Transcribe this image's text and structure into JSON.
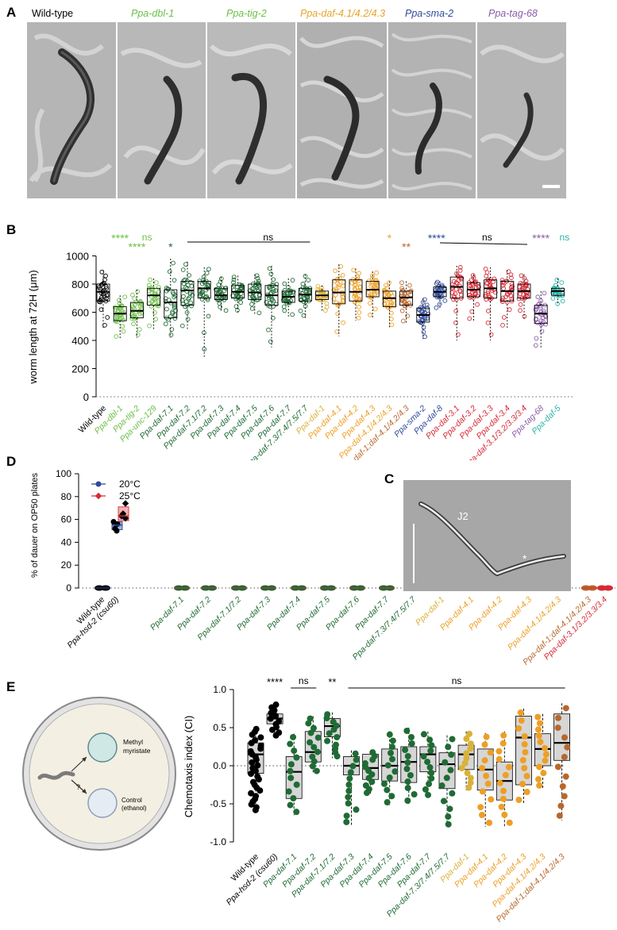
{
  "panel_labels": {
    "a": "A",
    "b": "B",
    "c": "C",
    "d": "D",
    "e": "E"
  },
  "panel_a": {
    "titles": [
      {
        "text": "Wild-type",
        "color": "#000000"
      },
      {
        "text": "Ppa-dbl-1",
        "color": "#6cbf45"
      },
      {
        "text": "Ppa-tig-2",
        "color": "#6cbf45"
      },
      {
        "text": "Ppa-daf-4.1/4.2/4.3",
        "color": "#e6a52a"
      },
      {
        "text": "Ppa-sma-2",
        "color": "#2e4a9a"
      },
      {
        "text": "Ppa-tag-68",
        "color": "#8c5ca8"
      }
    ]
  },
  "panel_c": {
    "label_j2": "J2",
    "star": "*"
  },
  "panel_e_schematic": {
    "label_top": "Methyl myristate",
    "label_top_l1": "Methyl",
    "label_top_l2": "myristate",
    "label_bottom_l1": "Control",
    "label_bottom_l2": "(ethanol)",
    "question": "?"
  },
  "colors": {
    "black": "#000000",
    "light_green": "#6cbf45",
    "dark_green": "#1f6b34",
    "yellow_gold": "#d9b23a",
    "orange": "#ed9f25",
    "brown": "#b8672c",
    "blue": "#2e4a9a",
    "red": "#d62a34",
    "purple": "#8c5ca8",
    "teal": "#2ab3a7",
    "box_gray": "#d6d6d6"
  },
  "chart_data": [
    {
      "type": "box",
      "panel": "B",
      "ylabel": "worm length at 72H (μm)",
      "ylim": [
        0,
        1000
      ],
      "yticks": [
        0,
        200,
        400,
        600,
        800,
        1000
      ],
      "categories": [
        {
          "label": "Wild-type",
          "color": "#000000",
          "q1": 680,
          "median": 745,
          "q3": 800,
          "min": 480,
          "max": 900
        },
        {
          "label": "Ppa-dbl-1",
          "color": "#6cbf45",
          "q1": 540,
          "median": 590,
          "q3": 640,
          "min": 410,
          "max": 720
        },
        {
          "label": "Ppa-tig-2",
          "color": "#6cbf45",
          "q1": 560,
          "median": 610,
          "q3": 670,
          "min": 420,
          "max": 760
        },
        {
          "label": "Ppa-unc-129",
          "color": "#6cbf45",
          "q1": 650,
          "median": 720,
          "q3": 770,
          "min": 480,
          "max": 840
        },
        {
          "label": "Ppa-daf-7.1",
          "color": "#1f6b34",
          "q1": 560,
          "median": 670,
          "q3": 760,
          "min": 420,
          "max": 980
        },
        {
          "label": "Ppa-daf-7.2",
          "color": "#1f6b34",
          "q1": 650,
          "median": 755,
          "q3": 820,
          "min": 480,
          "max": 960
        },
        {
          "label": "Ppa-daf-7.1/7.2",
          "color": "#1f6b34",
          "q1": 700,
          "median": 770,
          "q3": 820,
          "min": 280,
          "max": 920
        },
        {
          "label": "Ppa-daf-7.3",
          "color": "#1f6b34",
          "q1": 690,
          "median": 720,
          "q3": 770,
          "min": 600,
          "max": 850
        },
        {
          "label": "Ppa-daf-7.4",
          "color": "#1f6b34",
          "q1": 700,
          "median": 745,
          "q3": 790,
          "min": 600,
          "max": 860
        },
        {
          "label": "Ppa-daf-7.5",
          "color": "#1f6b34",
          "q1": 690,
          "median": 740,
          "q3": 800,
          "min": 580,
          "max": 870
        },
        {
          "label": "Ppa-daf-7.6",
          "color": "#1f6b34",
          "q1": 650,
          "median": 720,
          "q3": 790,
          "min": 350,
          "max": 930
        },
        {
          "label": "Ppa-daf-7.7",
          "color": "#1f6b34",
          "q1": 670,
          "median": 710,
          "q3": 750,
          "min": 570,
          "max": 840
        },
        {
          "label": "Ppa-daf-7.3/7.4/7.5/7.7",
          "color": "#1f6b34",
          "q1": 680,
          "median": 725,
          "q3": 770,
          "min": 560,
          "max": 870
        },
        {
          "label": "Ppa-daf-1",
          "color": "#d9b23a",
          "q1": 690,
          "median": 720,
          "q3": 750,
          "min": 600,
          "max": 790
        },
        {
          "label": "Ppa-daf-4.1",
          "color": "#ed9f25",
          "q1": 660,
          "median": 740,
          "q3": 830,
          "min": 430,
          "max": 940
        },
        {
          "label": "Ppa-daf-4.2",
          "color": "#ed9f25",
          "q1": 680,
          "median": 745,
          "q3": 830,
          "min": 540,
          "max": 910
        },
        {
          "label": "Ppa-daf-4.3",
          "color": "#ed9f25",
          "q1": 710,
          "median": 760,
          "q3": 820,
          "min": 560,
          "max": 890
        },
        {
          "label": "Ppa-daf-4.1/4.2/4.3",
          "color": "#ed9f25",
          "q1": 640,
          "median": 700,
          "q3": 750,
          "min": 490,
          "max": 820
        },
        {
          "label": "Ppa-daf-1;daf-4.1/4.2/4.3",
          "color": "#b8672c",
          "q1": 650,
          "median": 705,
          "q3": 750,
          "min": 520,
          "max": 820
        },
        {
          "label": "Ppa-sma-2",
          "color": "#2e4a9a",
          "q1": 530,
          "median": 580,
          "q3": 630,
          "min": 410,
          "max": 700
        },
        {
          "label": "Ppa-daf-8",
          "color": "#2e4a9a",
          "q1": 710,
          "median": 745,
          "q3": 780,
          "min": 620,
          "max": 820
        },
        {
          "label": "Ppa-daf-3.1",
          "color": "#d62a34",
          "q1": 700,
          "median": 780,
          "q3": 850,
          "min": 400,
          "max": 930
        },
        {
          "label": "Ppa-daf-3.2",
          "color": "#d62a34",
          "q1": 710,
          "median": 760,
          "q3": 810,
          "min": 530,
          "max": 870
        },
        {
          "label": "Ppa-daf-3.3",
          "color": "#d62a34",
          "q1": 700,
          "median": 770,
          "q3": 830,
          "min": 400,
          "max": 920
        },
        {
          "label": "Ppa-daf-3.4",
          "color": "#d62a34",
          "q1": 680,
          "median": 750,
          "q3": 820,
          "min": 480,
          "max": 900
        },
        {
          "label": "Ppa-daf-3.1/3.2/3.3/3.4",
          "color": "#d62a34",
          "q1": 700,
          "median": 750,
          "q3": 800,
          "min": 550,
          "max": 870
        },
        {
          "label": "Ppa-tag-68",
          "color": "#8c5ca8",
          "q1": 520,
          "median": 590,
          "q3": 650,
          "min": 340,
          "max": 750
        },
        {
          "label": "Ppa-daf-5",
          "color": "#2ab3a7",
          "q1": 720,
          "median": 750,
          "q3": 770,
          "min": 650,
          "max": 840
        }
      ],
      "annotations": [
        {
          "text": "****",
          "color": "#6cbf45",
          "at": 1,
          "row": 0
        },
        {
          "text": "ns",
          "color": "#6cbf45",
          "at": 2.6,
          "row": 0
        },
        {
          "text": "****",
          "color": "#6cbf45",
          "at": 2,
          "row": 1
        },
        {
          "text": "*",
          "color": "#1f6b34",
          "at": 4,
          "row": 1
        },
        {
          "text": "ns",
          "color": "#000000",
          "at": 9.8,
          "row": 0
        },
        {
          "text": "*",
          "color": "#e6a52a",
          "at": 17,
          "row": 0
        },
        {
          "text": "**",
          "color": "#b8672c",
          "at": 18,
          "row": 1
        },
        {
          "text": "****",
          "color": "#2e4a9a",
          "at": 19.8,
          "row": 0
        },
        {
          "text": "ns",
          "color": "#000000",
          "at": 22.8,
          "row": 0
        },
        {
          "text": "****",
          "color": "#8c5ca8",
          "at": 26,
          "row": 0
        },
        {
          "text": "ns",
          "color": "#2ab3a7",
          "at": 27.4,
          "row": 0
        }
      ]
    },
    {
      "type": "scatter",
      "panel": "D",
      "ylabel": "% of dauer on OP50 plates",
      "ylim": [
        0,
        100
      ],
      "yticks": [
        0,
        20,
        40,
        60,
        80,
        100
      ],
      "legend": [
        {
          "name": "20°C",
          "color": "#2e4a9a"
        },
        {
          "name": "25°C",
          "color": "#d62a34"
        }
      ],
      "categories": [
        {
          "label": "Wild-type",
          "color": "#000000",
          "val20": 0,
          "val25": 0
        },
        {
          "label": "Ppa-hsd-2 (csu60)",
          "color": "#000000",
          "val20": 55,
          "val25": 63
        },
        {
          "label": "Ppa-daf-7.1",
          "color": "#1f6b34",
          "val20": 0,
          "val25": 0
        },
        {
          "label": "Ppa-daf-7.2",
          "color": "#1f6b34",
          "val20": 0,
          "val25": 0
        },
        {
          "label": "Ppa-daf-7.1/7.2",
          "color": "#1f6b34",
          "val20": 0,
          "val25": 0
        },
        {
          "label": "Ppa-daf-7.3",
          "color": "#1f6b34",
          "val20": 0,
          "val25": 0
        },
        {
          "label": "Ppa-daf-7.4",
          "color": "#1f6b34",
          "val20": 0,
          "val25": 0
        },
        {
          "label": "Ppa-daf-7.5",
          "color": "#1f6b34",
          "val20": 0,
          "val25": 0
        },
        {
          "label": "Ppa-daf-7.6",
          "color": "#1f6b34",
          "val20": 0,
          "val25": 0
        },
        {
          "label": "Ppa-daf-7.7",
          "color": "#1f6b34",
          "val20": 0,
          "val25": 0
        },
        {
          "label": "Ppa-daf-7.3/7.4/7.5/7.7",
          "color": "#1f6b34",
          "val20": 0,
          "val25": 0
        },
        {
          "label": "Ppa-daf-1",
          "color": "#d9b23a",
          "val20": 0,
          "val25": 0
        },
        {
          "label": "Ppa-daf-4.1",
          "color": "#ed9f25",
          "val20": 0,
          "val25": 0
        },
        {
          "label": "Ppa-daf-4.2",
          "color": "#ed9f25",
          "val20": 0,
          "val25": 0
        },
        {
          "label": "Ppa-daf-4.3",
          "color": "#ed9f25",
          "val20": 0,
          "val25": 0
        },
        {
          "label": "Ppa-daf-4.1/4.2/4.3",
          "color": "#ed9f25",
          "val20": 0,
          "val25": 0
        },
        {
          "label": "Ppa-daf-1;daf-4.1/4.2/4.3",
          "color": "#b8672c",
          "val20": 0,
          "val25": 0
        },
        {
          "label": "Ppa-daf-3.1/3.2/3.3/3.4",
          "color": "#d62a34",
          "val20": 0,
          "val25": 0
        }
      ]
    },
    {
      "type": "box",
      "panel": "E",
      "ylabel": "Chemotaxis index (CI)",
      "ylim": [
        -1.0,
        1.0
      ],
      "yticks": [
        -1.0,
        -0.5,
        0.0,
        0.5,
        1.0
      ],
      "categories": [
        {
          "label": "Wild-type",
          "color": "#000000",
          "q1": -0.1,
          "median": 0.15,
          "q3": 0.3,
          "min": -0.6,
          "max": 0.5
        },
        {
          "label": "Ppa-hsd-2 (csu60)",
          "color": "#000000",
          "q1": 0.55,
          "median": 0.62,
          "q3": 0.68,
          "min": 0.38,
          "max": 0.82
        },
        {
          "label": "Ppa-daf-7.1",
          "color": "#1f6b34",
          "q1": -0.43,
          "median": -0.08,
          "q3": 0.12,
          "min": -0.65,
          "max": 0.42
        },
        {
          "label": "Ppa-daf-7.2",
          "color": "#1f6b34",
          "q1": 0.05,
          "median": 0.18,
          "q3": 0.45,
          "min": -0.1,
          "max": 0.65
        },
        {
          "label": "Ppa-daf-7.1/7.2",
          "color": "#1f6b34",
          "q1": 0.38,
          "median": 0.52,
          "q3": 0.62,
          "min": 0.1,
          "max": 0.7
        },
        {
          "label": "Ppa-daf-7.3",
          "color": "#1f6b34",
          "q1": -0.12,
          "median": 0.0,
          "q3": 0.12,
          "min": -0.78,
          "max": 0.2
        },
        {
          "label": "Ppa-daf-7.4",
          "color": "#1f6b34",
          "q1": -0.18,
          "median": -0.03,
          "q3": 0.15,
          "min": -0.38,
          "max": 0.2
        },
        {
          "label": "Ppa-daf-7.5",
          "color": "#1f6b34",
          "q1": -0.2,
          "median": 0.0,
          "q3": 0.22,
          "min": -0.52,
          "max": 0.45
        },
        {
          "label": "Ppa-daf-7.6",
          "color": "#1f6b34",
          "q1": -0.22,
          "median": 0.05,
          "q3": 0.25,
          "min": -0.5,
          "max": 0.5
        },
        {
          "label": "Ppa-daf-7.7",
          "color": "#1f6b34",
          "q1": -0.08,
          "median": 0.15,
          "q3": 0.25,
          "min": -0.42,
          "max": 0.45
        },
        {
          "label": "Ppa-daf-7.3/7.4/7.5/7.7",
          "color": "#1f6b34",
          "q1": -0.3,
          "median": 0.02,
          "q3": 0.17,
          "min": -0.82,
          "max": 0.4
        },
        {
          "label": "Ppa-daf-1",
          "color": "#d9b23a",
          "q1": -0.05,
          "median": 0.15,
          "q3": 0.27,
          "min": -0.32,
          "max": 0.45
        },
        {
          "label": "Ppa-daf-4.1",
          "color": "#ed9f25",
          "q1": -0.32,
          "median": -0.05,
          "q3": 0.22,
          "min": -0.8,
          "max": 0.43
        },
        {
          "label": "Ppa-daf-4.2",
          "color": "#ed9f25",
          "q1": -0.45,
          "median": -0.2,
          "q3": 0.05,
          "min": -0.8,
          "max": 0.45
        },
        {
          "label": "Ppa-daf-4.3",
          "color": "#ed9f25",
          "q1": -0.25,
          "median": 0.37,
          "q3": 0.65,
          "min": -0.5,
          "max": 0.75
        },
        {
          "label": "Ppa-daf-4.1/4.2/4.3",
          "color": "#ed9f25",
          "q1": 0.0,
          "median": 0.22,
          "q3": 0.42,
          "min": -0.3,
          "max": 0.68
        },
        {
          "label": "Ppa-daf-1;daf-4.1/4.2/4.3",
          "color": "#b8672c",
          "q1": 0.07,
          "median": 0.3,
          "q3": 0.68,
          "min": -0.72,
          "max": 0.82
        }
      ],
      "annotations": [
        {
          "text": "****",
          "color": "#000000",
          "at": 1
        },
        {
          "text": "ns",
          "color": "#000000",
          "at": 2.5
        },
        {
          "text": "**",
          "color": "#000000",
          "at": 4
        },
        {
          "text": "ns",
          "color": "#000000",
          "at": 10.5
        }
      ]
    }
  ]
}
